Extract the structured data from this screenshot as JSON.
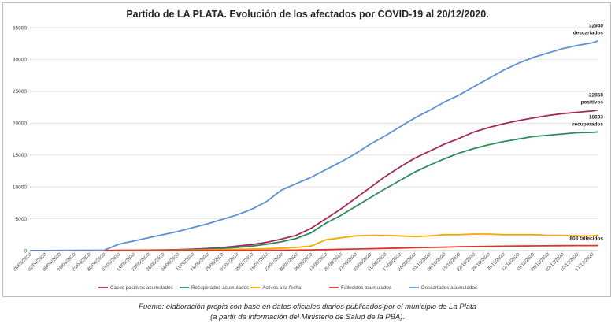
{
  "chart_data": {
    "type": "line",
    "title": "Partido de LA PLATA. Evolución de los afectados por COVID-19 al 20/12/2020.",
    "ylim": [
      0,
      35000
    ],
    "yticks": [
      0,
      5000,
      10000,
      15000,
      20000,
      25000,
      30000,
      35000
    ],
    "grid": true,
    "legend_position": "bottom",
    "x_tick_labels": [
      "26/03/2020",
      "02/04/2020",
      "09/04/2020",
      "16/04/2020",
      "23/04/2020",
      "30/04/2020",
      "07/05/2020",
      "14/05/2020",
      "21/05/2020",
      "28/05/2020",
      "04/06/2020",
      "11/06/2020",
      "18/06/2020",
      "25/06/2020",
      "02/07/2020",
      "09/07/2020",
      "16/07/2020",
      "23/07/2020",
      "30/07/2020",
      "06/08/2020",
      "13/08/2020",
      "20/08/2020",
      "27/08/2020",
      "03/09/2020",
      "10/09/2020",
      "17/09/2020",
      "24/09/2020",
      "01/10/2020",
      "08/10/2020",
      "15/10/2020",
      "22/10/2020",
      "29/10/2020",
      "05/11/2020",
      "12/11/2020",
      "19/11/2020",
      "26/11/2020",
      "03/12/2020",
      "10/12/2020",
      "17/12/2020"
    ],
    "x": [
      "26/03/2020",
      "02/04/2020",
      "09/04/2020",
      "16/04/2020",
      "23/04/2020",
      "30/04/2020",
      "07/05/2020",
      "14/05/2020",
      "21/05/2020",
      "28/05/2020",
      "04/06/2020",
      "11/06/2020",
      "18/06/2020",
      "25/06/2020",
      "02/07/2020",
      "09/07/2020",
      "16/07/2020",
      "23/07/2020",
      "30/07/2020",
      "06/08/2020",
      "13/08/2020",
      "20/08/2020",
      "27/08/2020",
      "03/09/2020",
      "10/09/2020",
      "17/09/2020",
      "24/09/2020",
      "01/10/2020",
      "08/10/2020",
      "15/10/2020",
      "22/10/2020",
      "29/10/2020",
      "05/11/2020",
      "12/11/2020",
      "19/11/2020",
      "26/11/2020",
      "03/12/2020",
      "10/12/2020",
      "17/12/2020",
      "20/12/2020"
    ],
    "series": [
      {
        "name": "Casos positivos acumulados",
        "color": "#a3275d",
        "values": [
          5,
          10,
          15,
          20,
          25,
          30,
          40,
          50,
          70,
          100,
          150,
          220,
          330,
          480,
          700,
          950,
          1300,
          1800,
          2400,
          3500,
          5000,
          6500,
          8200,
          9900,
          11600,
          13100,
          14500,
          15600,
          16700,
          17600,
          18600,
          19300,
          19900,
          20400,
          20800,
          21200,
          21500,
          21700,
          21900,
          22058
        ]
      },
      {
        "name": "Recuperados acumulados",
        "color": "#2e8b57",
        "values": [
          0,
          2,
          5,
          8,
          12,
          18,
          25,
          35,
          50,
          70,
          100,
          150,
          230,
          340,
          500,
          700,
          1000,
          1400,
          1900,
          2800,
          4300,
          5500,
          6900,
          8300,
          9700,
          11000,
          12300,
          13400,
          14400,
          15300,
          16000,
          16600,
          17100,
          17500,
          17900,
          18100,
          18300,
          18500,
          18550,
          18633
        ]
      },
      {
        "name": "Activos a la fecha",
        "color": "#f2a900",
        "values": [
          5,
          8,
          10,
          12,
          13,
          12,
          15,
          15,
          20,
          30,
          50,
          70,
          100,
          140,
          200,
          250,
          300,
          400,
          500,
          700,
          1700,
          2000,
          2300,
          2400,
          2400,
          2300,
          2200,
          2300,
          2500,
          2500,
          2600,
          2600,
          2500,
          2500,
          2500,
          2400,
          2400,
          2300,
          2300,
          2400
        ]
      },
      {
        "name": "Fallecidos acumulados",
        "color": "#e0312b",
        "values": [
          0,
          0,
          0,
          1,
          1,
          1,
          2,
          2,
          3,
          3,
          5,
          7,
          10,
          15,
          20,
          30,
          45,
          60,
          80,
          110,
          150,
          200,
          250,
          300,
          350,
          400,
          450,
          500,
          550,
          600,
          630,
          660,
          690,
          720,
          740,
          760,
          775,
          790,
          797,
          803
        ]
      },
      {
        "name": "Descartados acumulados",
        "color": "#5b8fd4",
        "values": [
          0,
          10,
          20,
          30,
          40,
          50,
          1000,
          1500,
          2000,
          2500,
          3000,
          3600,
          4200,
          4900,
          5600,
          6500,
          7700,
          9500,
          10500,
          11500,
          12700,
          13900,
          15200,
          16700,
          18000,
          19400,
          20800,
          22000,
          23300,
          24400,
          25700,
          27000,
          28300,
          29400,
          30300,
          31000,
          31700,
          32200,
          32600,
          32940
        ]
      }
    ],
    "annotations": [
      {
        "series": "Descartados acumulados",
        "value_text": "32940",
        "label": "descartados"
      },
      {
        "series": "Casos positivos acumulados",
        "value_text": "22058",
        "label": "positivos"
      },
      {
        "series": "Recuperados acumulados",
        "value_text": "18633",
        "label": "recuperados"
      },
      {
        "series": "Fallecidos acumulados",
        "value_text": "803 fallecidos",
        "label": ""
      }
    ]
  },
  "source": {
    "line1": "Fuente: elaboración propia con base en datos oficiales diarios publicados por el municipio de La Plata",
    "line2": "(a partir de información del Ministerio de Salud de la PBA)."
  }
}
